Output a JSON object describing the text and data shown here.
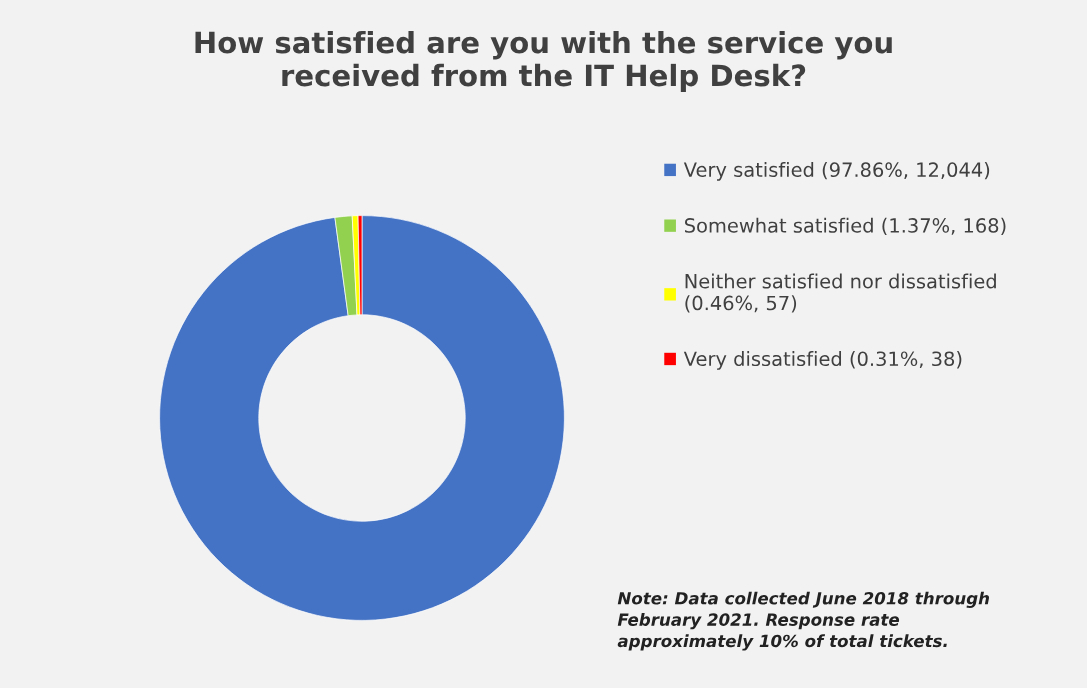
{
  "chart_data": {
    "type": "donut",
    "title": "How satisfied are you with the service you\nreceived from the IT Help Desk?",
    "categories": [
      "Very satisfied (97.86%, 12,044)",
      "Somewhat satisfied (1.37%, 168)",
      "Neither satisfied nor dissatisfied\n(0.46%, 57)",
      "Very dissatisfied (0.31%, 38)"
    ],
    "values": [
      12044,
      168,
      57,
      38
    ],
    "colors": [
      "#4472c4",
      "#92d050",
      "#ffff00",
      "#ff0000"
    ],
    "legend": "right",
    "annotations": [
      "Note: Data collected June 2018 through\nFebruary 2021. Response rate\napproximately 10% of total tickets."
    ]
  }
}
